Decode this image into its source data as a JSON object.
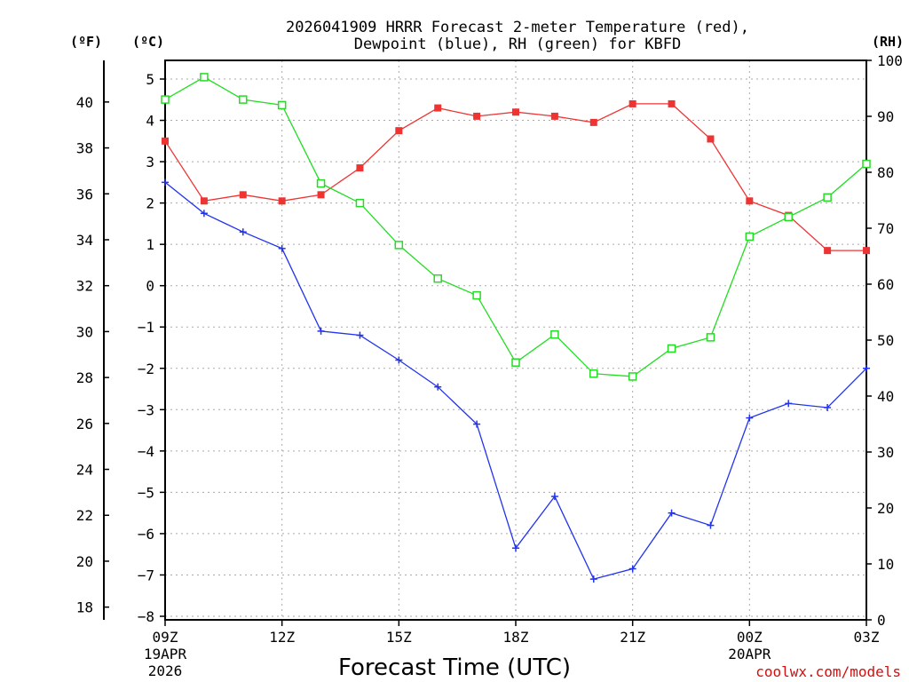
{
  "chart_data": {
    "type": "line",
    "title_line1": "2026041909 HRRR Forecast 2-meter Temperature (red),",
    "title_line2": "Dewpoint (blue), RH (green) for KBFD",
    "xlabel": "Forecast Time (UTC)",
    "credit": "coolwx.com/models",
    "unit_labels": {
      "fahrenheit": "(ºF)",
      "celsius": "(ºC)",
      "rh": "(RH)"
    },
    "x_ticks": [
      {
        "hour": 0,
        "label": "09Z",
        "sub1": "19APR",
        "sub2": "2026"
      },
      {
        "hour": 3,
        "label": "12Z"
      },
      {
        "hour": 6,
        "label": "15Z"
      },
      {
        "hour": 9,
        "label": "18Z"
      },
      {
        "hour": 12,
        "label": "21Z"
      },
      {
        "hour": 15,
        "label": "00Z",
        "sub1": "20APR"
      },
      {
        "hour": 18,
        "label": "03Z"
      }
    ],
    "xlim": [
      0,
      18
    ],
    "celsius_axis": {
      "ylim": [
        -8,
        5.5
      ],
      "ticks": [
        "5",
        "4",
        "3",
        "2",
        "1",
        "0",
        "−1",
        "−2",
        "−3",
        "−4",
        "−5",
        "−6",
        "−7",
        "−8"
      ],
      "tick_values": [
        5,
        4,
        3,
        2,
        1,
        0,
        -1,
        -2,
        -3,
        -4,
        -5,
        -6,
        -7,
        -8
      ]
    },
    "fahrenheit_axis": {
      "ticks": [
        "40",
        "38",
        "36",
        "34",
        "32",
        "30",
        "28",
        "26",
        "24",
        "22",
        "20",
        "18"
      ],
      "tick_values": [
        40,
        38,
        36,
        34,
        32,
        30,
        28,
        26,
        24,
        22,
        20,
        18
      ]
    },
    "rh_axis": {
      "ylim": [
        0,
        100
      ],
      "ticks": [
        "100",
        "90",
        "80",
        "70",
        "60",
        "50",
        "40",
        "30",
        "20",
        "10",
        "0"
      ],
      "tick_values": [
        100,
        90,
        80,
        70,
        60,
        50,
        40,
        30,
        20,
        10,
        0
      ]
    },
    "series": [
      {
        "name": "Temperature",
        "axis": "celsius",
        "color": "#ee3333",
        "marker": "filled-square",
        "x": [
          0,
          1,
          2,
          3,
          4,
          5,
          6,
          7,
          8,
          9,
          10,
          11,
          12,
          13,
          14,
          15,
          16,
          17,
          18
        ],
        "values": [
          3.5,
          2.05,
          2.2,
          2.05,
          2.2,
          2.85,
          3.75,
          4.3,
          4.1,
          4.2,
          4.1,
          3.95,
          4.4,
          4.4,
          3.55,
          2.05,
          1.7,
          0.85,
          0.85
        ]
      },
      {
        "name": "Dewpoint",
        "axis": "celsius",
        "color": "#2233ee",
        "marker": "plus",
        "x": [
          0,
          1,
          2,
          3,
          4,
          5,
          6,
          7,
          8,
          9,
          10,
          11,
          12,
          13,
          14,
          15,
          16,
          17,
          18
        ],
        "values": [
          2.5,
          1.75,
          1.3,
          0.9,
          -1.1,
          -1.2,
          -1.8,
          -2.45,
          -3.35,
          -6.35,
          -5.1,
          -7.1,
          -6.85,
          -5.5,
          -5.8,
          -3.2,
          -2.85,
          -2.95,
          -2.0
        ]
      },
      {
        "name": "RH",
        "axis": "rh",
        "color": "#22dd22",
        "marker": "open-square",
        "x": [
          0,
          1,
          2,
          3,
          4,
          5,
          6,
          7,
          8,
          9,
          10,
          11,
          12,
          13,
          14,
          15,
          16,
          17,
          18
        ],
        "values": [
          93,
          97,
          93,
          92,
          78,
          74.5,
          67,
          61,
          58,
          46,
          51,
          44,
          43.5,
          48.5,
          50.5,
          68.5,
          72,
          75.5,
          81.5
        ]
      }
    ]
  }
}
